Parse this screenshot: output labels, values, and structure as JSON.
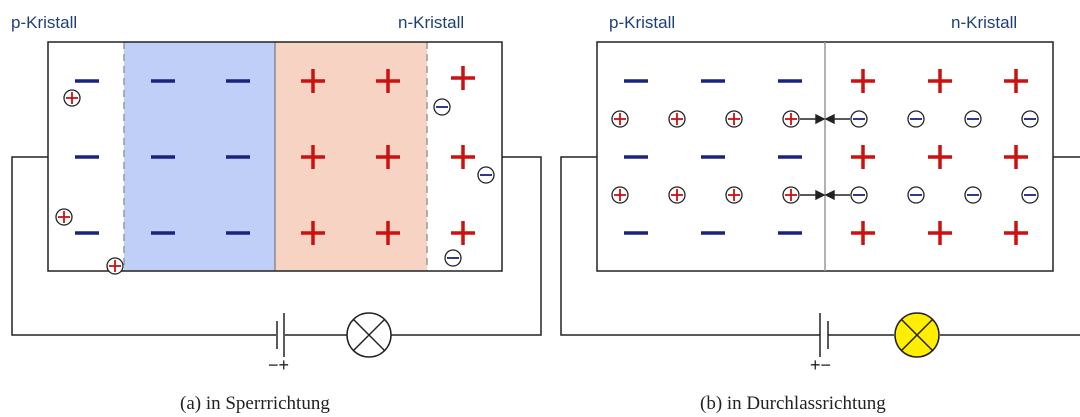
{
  "panels": [
    {
      "id": "a",
      "label_p": "p-Kristall",
      "label_n": "n-Kristall",
      "caption": "(a)  in Sperrrichtung",
      "battery_signs": "−+",
      "lamp_on": false
    },
    {
      "id": "b",
      "label_p": "p-Kristall",
      "label_n": "n-Kristall",
      "caption": "(b)  in Durchlassrichtung",
      "battery_signs": "+−",
      "lamp_on": true
    }
  ],
  "colors": {
    "acceptor_ion": "#1a237e",
    "donor_ion": "#cc1111",
    "depletion_p": "#bfcff7",
    "depletion_n": "#f7d3c4",
    "text_label": "#1f3f7a",
    "lamp_on": "#ffee00",
    "wire": "#222222",
    "junction_line": "#999999"
  }
}
